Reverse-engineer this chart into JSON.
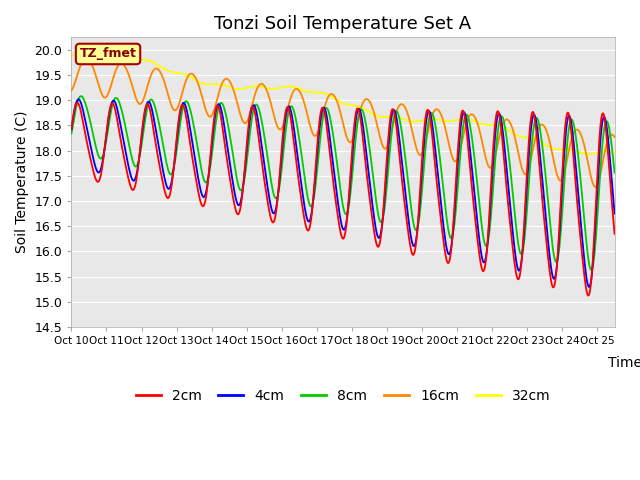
{
  "title": "Tonzi Soil Temperature Set A",
  "ylabel": "Soil Temperature (C)",
  "xlabel": "Time",
  "ylim": [
    14.5,
    20.25
  ],
  "xlim": [
    0,
    15.5
  ],
  "xtick_labels": [
    "Oct 10",
    "Oct 11",
    "Oct 12",
    "Oct 13",
    "Oct 14",
    "Oct 15",
    "Oct 16",
    "Oct 17",
    "Oct 18",
    "Oct 19",
    "Oct 20",
    "Oct 21",
    "Oct 22",
    "Oct 23",
    "Oct 24",
    "Oct 25"
  ],
  "ytick_vals": [
    14.5,
    15.0,
    15.5,
    16.0,
    16.5,
    17.0,
    17.5,
    18.0,
    18.5,
    19.0,
    19.5,
    20.0
  ],
  "line_colors": [
    "#ff0000",
    "#0000ff",
    "#00cc00",
    "#ff8800",
    "#ffff00"
  ],
  "line_labels": [
    "2cm",
    "4cm",
    "8cm",
    "16cm",
    "32cm"
  ],
  "annotation_text": "TZ_fmet",
  "annotation_bg": "#ffff99",
  "annotation_edge": "#aa0000",
  "plot_bg": "#e8e8e8",
  "title_fontsize": 13,
  "axis_fontsize": 10,
  "legend_fontsize": 10
}
